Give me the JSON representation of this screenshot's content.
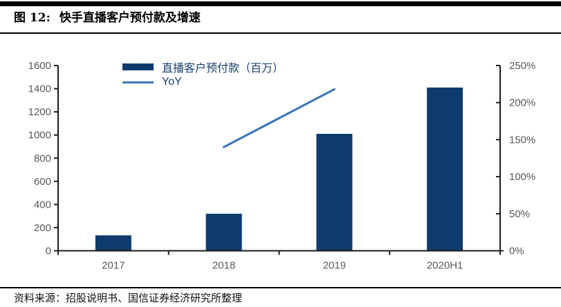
{
  "header": {
    "fig_label": "图 12:",
    "title": "快手直播客户预付款及增速"
  },
  "footer": {
    "source": "资料来源：招股说明书、国信证券经济研究所整理"
  },
  "chart_data": {
    "type": "bar",
    "title": "快手直播客户预付款及增速",
    "categories": [
      "2017",
      "2018",
      "2019",
      "2020H1"
    ],
    "series": [
      {
        "name": "直播客户预付款（百万）",
        "type": "bar",
        "axis": "left",
        "color": "#0e3b6b",
        "values": [
          133,
          320,
          1010,
          1410
        ]
      },
      {
        "name": "YoY",
        "type": "line",
        "axis": "right",
        "color": "#3e78b8",
        "values": [
          null,
          140,
          218,
          null
        ]
      }
    ],
    "left_axis": {
      "min": 0,
      "max": 1600,
      "step": 200
    },
    "right_axis": {
      "min": 0,
      "max": 250,
      "step": 50,
      "suffix": "%"
    },
    "legend_position": "top-left-inside",
    "grid": false,
    "styles": {
      "bar_color": "#0e3b6b",
      "line_color": "#3e78b8",
      "tick_label_color": "#595959",
      "axis_color": "#1a1a1a",
      "legend_text_color": "#17406f"
    }
  }
}
